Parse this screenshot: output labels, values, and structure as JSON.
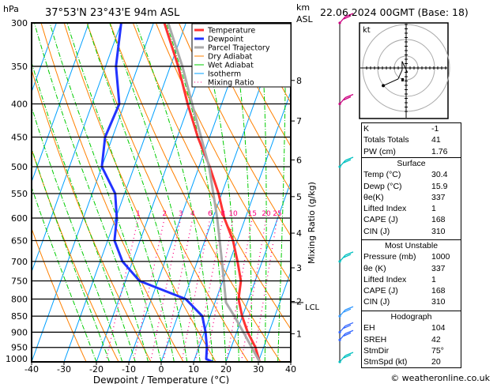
{
  "header": {
    "location": "37°53'N  23°43'E  94m  ASL",
    "datetime": "22.06.2024  00GMT  (Base: 18)",
    "y_unit": "hPa",
    "km_unit": "km",
    "asl_unit": "ASL",
    "footer": "© weatheronline.co.uk"
  },
  "colors": {
    "temperature": "#ff3333",
    "dewpoint": "#2233ff",
    "parcel": "#aaaaaa",
    "dry_adiabat": "#ff8000",
    "wet_adiabat": "#00cc00",
    "isotherm": "#00a0ff",
    "mixing_ratio": "#ff0080"
  },
  "chart_data": {
    "type": "line",
    "title": "Skew-T log-P sounding",
    "xlabel": "Dewpoint / Temperature (°C)",
    "ylabel": "hPa",
    "right_label": "Mixing Ratio (g/kg)",
    "xlim": [
      -40,
      40
    ],
    "ylim": [
      1000,
      300
    ],
    "x_ticks": [
      "-40",
      "-30",
      "-20",
      "-10",
      "0",
      "10",
      "20",
      "30",
      "40"
    ],
    "x_tick_values": [
      -40,
      -30,
      -20,
      -10,
      0,
      10,
      20,
      30,
      40
    ],
    "pressure_levels": [
      300,
      350,
      400,
      450,
      500,
      550,
      600,
      650,
      700,
      750,
      800,
      850,
      900,
      950,
      1000
    ],
    "pressure_labels": [
      "300",
      "350",
      "400",
      "450",
      "500",
      "550",
      "600",
      "650",
      "700",
      "750",
      "800",
      "850",
      "900",
      "950",
      "1000"
    ],
    "km_ticks": [
      {
        "label": "1",
        "p": 905
      },
      {
        "label": "2",
        "p": 807
      },
      {
        "label": "3",
        "p": 716
      },
      {
        "label": "4",
        "p": 633
      },
      {
        "label": "5",
        "p": 556
      },
      {
        "label": "6",
        "p": 488
      },
      {
        "label": "7",
        "p": 425
      },
      {
        "label": "8",
        "p": 368
      }
    ],
    "lcl": {
      "label": "LCL",
      "p": 810
    },
    "legend": [
      {
        "name": "Temperature",
        "style": "thick",
        "color": "#ff3333"
      },
      {
        "name": "Dewpoint",
        "style": "thick",
        "color": "#2233ff"
      },
      {
        "name": "Parcel Trajectory",
        "style": "thick",
        "color": "#aaaaaa"
      },
      {
        "name": "Dry Adiabat",
        "style": "thin",
        "color": "#ff8000"
      },
      {
        "name": "Wet Adiabat",
        "style": "thin",
        "color": "#00cc00"
      },
      {
        "name": "Isotherm",
        "style": "thin",
        "color": "#00a0ff"
      },
      {
        "name": "Mixing Ratio",
        "style": "dotted",
        "color": "#ff0080"
      }
    ],
    "legend_position": "top-right",
    "mixing_ratio_values": [
      1,
      2,
      3,
      4,
      6,
      8,
      10,
      15,
      20,
      25
    ],
    "mixing_ratio_labels": [
      "1",
      "2",
      "3",
      "4",
      "6",
      "8",
      "10",
      "15",
      "20",
      "25"
    ],
    "series": [
      {
        "name": "Temperature",
        "p": [
          1000,
          950,
          900,
          850,
          800,
          750,
          700,
          650,
          600,
          550,
          500,
          450,
          400,
          350,
          300
        ],
        "t": [
          30.4,
          27.5,
          23.4,
          19.9,
          16.9,
          15.6,
          12.4,
          8.7,
          3.5,
          -1.0,
          -6.7,
          -13.7,
          -20.5,
          -27.6,
          -36.7
        ]
      },
      {
        "name": "Dewpoint",
        "p": [
          1000,
          990,
          950,
          900,
          850,
          800,
          750,
          700,
          650,
          600,
          550,
          500,
          450,
          400,
          350,
          300
        ],
        "t": [
          15.9,
          13.6,
          12.5,
          10.4,
          7.6,
          0.6,
          -15.7,
          -23.1,
          -27.9,
          -29.7,
          -32.9,
          -40.0,
          -42.3,
          -41.6,
          -46.8,
          -50.0
        ]
      },
      {
        "name": "Parcel Trajectory",
        "p": [
          1000,
          900,
          850,
          810,
          700,
          600,
          500,
          400,
          350,
          300
        ],
        "t": [
          30.4,
          22.1,
          17.5,
          13.4,
          7.6,
          1.3,
          -6.9,
          -19.1,
          -26.3,
          -35.5
        ]
      }
    ],
    "wind_barbs": [
      {
        "p": 300,
        "color": "#cc0080"
      },
      {
        "p": 400,
        "color": "#cc0080"
      },
      {
        "p": 500,
        "color": "#00c0c0"
      },
      {
        "p": 700,
        "color": "#00c0c0"
      },
      {
        "p": 850,
        "color": "#3399ff"
      },
      {
        "p": 900,
        "color": "#3366ff"
      },
      {
        "p": 925,
        "color": "#3366ff"
      },
      {
        "p": 1000,
        "color": "#00c0c0"
      }
    ],
    "hodograph": {
      "unit_label": "kt",
      "points_kt": [
        [
          -17,
          -8
        ],
        [
          -6,
          -5
        ],
        [
          -3,
          -1
        ],
        [
          -3,
          3
        ],
        [
          1,
          -2
        ]
      ]
    }
  },
  "indices": [
    {
      "label": "K",
      "value": "-1"
    },
    {
      "label": "Totals Totals",
      "value": "41"
    },
    {
      "label": "PW (cm)",
      "value": "1.76"
    }
  ],
  "surface": {
    "title": "Surface",
    "rows": [
      {
        "label": "Temp (°C)",
        "value": "30.4"
      },
      {
        "label": "Dewp (°C)",
        "value": "15.9"
      },
      {
        "label": "θe(K)",
        "value": "337"
      },
      {
        "label": "Lifted Index",
        "value": "1"
      },
      {
        "label": "CAPE (J)",
        "value": "168"
      },
      {
        "label": "CIN (J)",
        "value": "310"
      }
    ]
  },
  "most_unstable": {
    "title": "Most Unstable",
    "rows": [
      {
        "label": "Pressure (mb)",
        "value": "1000"
      },
      {
        "label": "θe (K)",
        "value": "337"
      },
      {
        "label": "Lifted Index",
        "value": "1"
      },
      {
        "label": "CAPE (J)",
        "value": "168"
      },
      {
        "label": "CIN (J)",
        "value": "310"
      }
    ]
  },
  "hodograph_table": {
    "title": "Hodograph",
    "rows": [
      {
        "label": "EH",
        "value": "104"
      },
      {
        "label": "SREH",
        "value": "42"
      },
      {
        "label": "StmDir",
        "value": "75°"
      },
      {
        "label": "StmSpd (kt)",
        "value": "20"
      }
    ]
  }
}
